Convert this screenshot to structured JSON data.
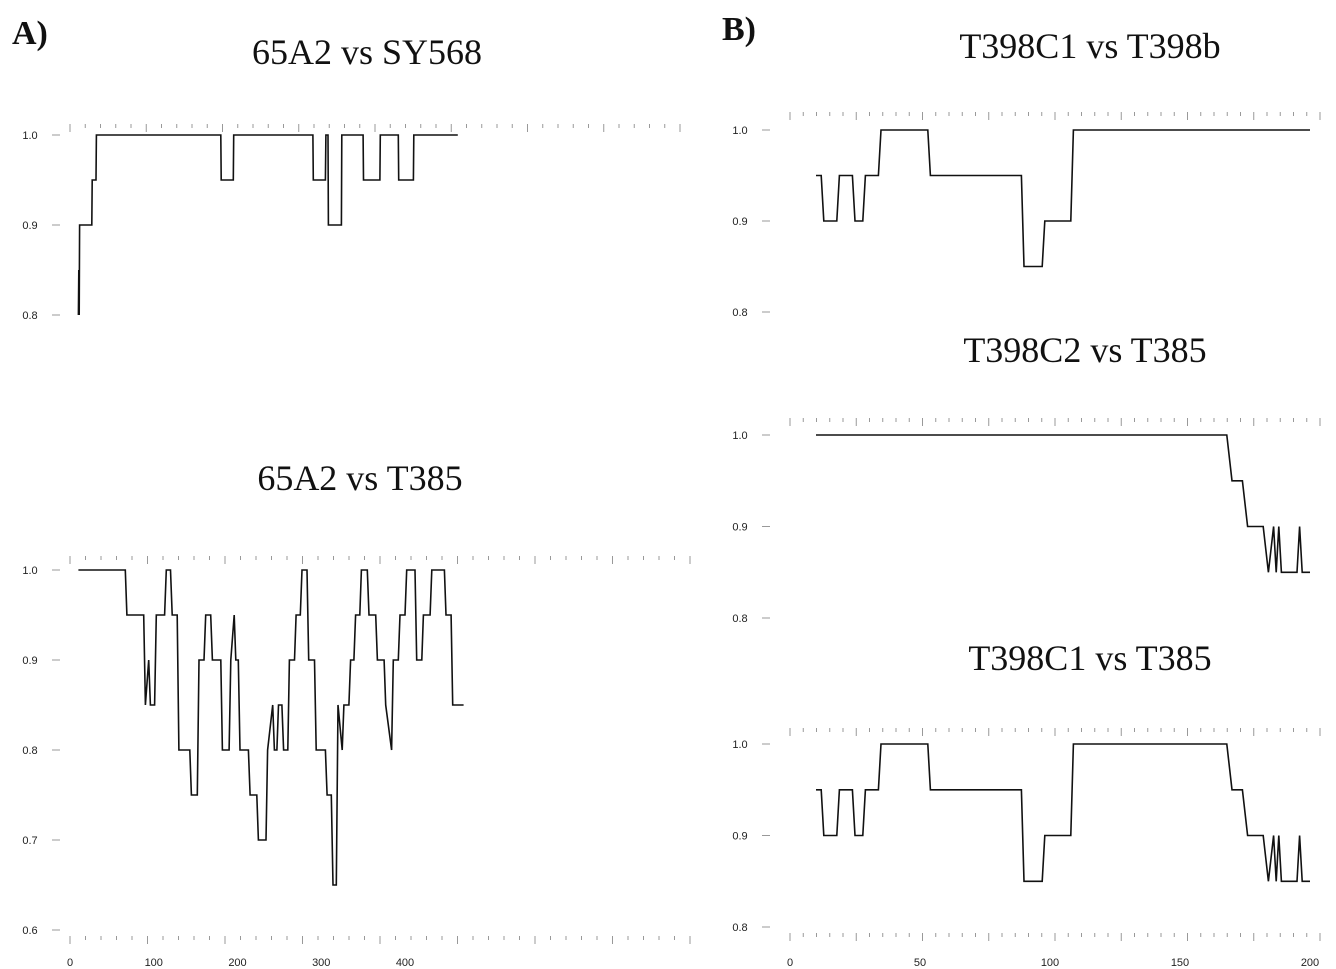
{
  "panels": [
    {
      "letter": "A)"
    },
    {
      "letter": "B)"
    }
  ],
  "chart_data": [
    {
      "type": "line",
      "title": "65A2 vs SY568",
      "ylim": [
        0.8,
        1.0
      ],
      "yticks": [
        "0.8",
        "0.9",
        "1.0"
      ],
      "xlim": [
        0,
        480
      ],
      "xticks": [],
      "x": [
        10,
        10.5,
        11,
        11.5,
        16,
        16.5,
        26,
        26.5,
        31,
        31.5,
        180,
        180.5,
        195,
        195.5,
        290,
        290.5,
        305,
        305.5,
        308,
        308.5,
        314,
        314.5,
        324,
        324.5,
        350,
        350.5,
        370,
        370.5,
        392,
        392.5,
        410,
        410.5,
        430,
        430.5,
        460,
        463
      ],
      "y": [
        0.8,
        0.85,
        0.8,
        0.9,
        0.9,
        0.9,
        0.9,
        0.95,
        0.95,
        1.0,
        1.0,
        0.95,
        0.95,
        1.0,
        1.0,
        0.95,
        0.95,
        1.0,
        1.0,
        0.9,
        0.9,
        0.9,
        0.9,
        1.0,
        1.0,
        0.95,
        0.95,
        1.0,
        1.0,
        0.95,
        0.95,
        1.0,
        1.0,
        1.0,
        1.0,
        1.0
      ]
    },
    {
      "type": "line",
      "title": "65A2 vs T385",
      "ylim": [
        0.6,
        1.0
      ],
      "yticks": [
        "0.6",
        "0.7",
        "0.8",
        "0.9",
        "1.0"
      ],
      "xlim": [
        0,
        480
      ],
      "xticks": [
        "0",
        "100",
        "200",
        "300",
        "400"
      ],
      "x": [
        10,
        66,
        68,
        88,
        90,
        94,
        96,
        101,
        103,
        113,
        115,
        120,
        122,
        128,
        130,
        143,
        145,
        152,
        154,
        160,
        162,
        168,
        170,
        180,
        182,
        190,
        192,
        196,
        198,
        201,
        203,
        213,
        215,
        223,
        225,
        234,
        236,
        242,
        244,
        247,
        249,
        253,
        255,
        260,
        262,
        268,
        270,
        275,
        277,
        283,
        285,
        292,
        294,
        305,
        307,
        312,
        314,
        318,
        320,
        325,
        327,
        333,
        335,
        339,
        341,
        346,
        348,
        355,
        357,
        365,
        367,
        375,
        377,
        384,
        386,
        392,
        394,
        400,
        402,
        412,
        414,
        420,
        422,
        430,
        432,
        447,
        449,
        455,
        457,
        470
      ],
      "y": [
        1.0,
        1.0,
        0.95,
        0.95,
        0.85,
        0.9,
        0.85,
        0.85,
        0.95,
        0.95,
        1.0,
        1.0,
        0.95,
        0.95,
        0.8,
        0.8,
        0.75,
        0.75,
        0.9,
        0.9,
        0.95,
        0.95,
        0.9,
        0.9,
        0.8,
        0.8,
        0.9,
        0.95,
        0.9,
        0.9,
        0.8,
        0.8,
        0.75,
        0.75,
        0.7,
        0.7,
        0.8,
        0.85,
        0.8,
        0.8,
        0.85,
        0.85,
        0.8,
        0.8,
        0.9,
        0.9,
        0.95,
        0.95,
        1.0,
        1.0,
        0.9,
        0.9,
        0.8,
        0.8,
        0.75,
        0.75,
        0.65,
        0.65,
        0.85,
        0.8,
        0.85,
        0.85,
        0.9,
        0.9,
        0.95,
        0.95,
        1.0,
        1.0,
        0.95,
        0.95,
        0.9,
        0.9,
        0.85,
        0.8,
        0.9,
        0.9,
        0.95,
        0.95,
        1.0,
        1.0,
        0.9,
        0.9,
        0.95,
        0.95,
        1.0,
        1.0,
        0.95,
        0.95,
        0.85,
        0.85
      ]
    },
    {
      "type": "line",
      "title": "T398C1 vs T398b",
      "ylim": [
        0.8,
        1.0
      ],
      "yticks": [
        "0.8",
        "0.9",
        "1.0"
      ],
      "xlim": [
        0,
        200
      ],
      "xticks": [],
      "x": [
        10,
        12,
        13,
        18,
        19,
        24,
        25,
        28,
        29,
        34,
        35,
        47,
        48,
        53,
        54,
        89,
        90,
        92,
        93,
        97,
        98,
        108,
        109,
        200
      ],
      "y": [
        0.95,
        0.95,
        0.9,
        0.9,
        0.95,
        0.95,
        0.9,
        0.9,
        0.95,
        0.95,
        1.0,
        1.0,
        1.0,
        1.0,
        0.95,
        0.95,
        0.85,
        0.85,
        0.85,
        0.85,
        0.9,
        0.9,
        1.0,
        1.0
      ]
    },
    {
      "type": "line",
      "title": "T398C2 vs T385",
      "ylim": [
        0.8,
        1.0
      ],
      "yticks": [
        "0.8",
        "0.9",
        "1.0"
      ],
      "xlim": [
        0,
        200
      ],
      "xticks": [],
      "x": [
        10,
        168,
        170,
        174,
        176,
        182,
        184,
        186,
        187,
        188,
        189,
        195,
        196,
        197,
        198,
        200
      ],
      "y": [
        1.0,
        1.0,
        0.95,
        0.95,
        0.9,
        0.9,
        0.85,
        0.9,
        0.85,
        0.9,
        0.85,
        0.85,
        0.9,
        0.85,
        0.85,
        0.85
      ]
    },
    {
      "type": "line",
      "title": "T398C1 vs T385",
      "ylim": [
        0.8,
        1.0
      ],
      "yticks": [
        "0.8",
        "0.9",
        "1.0"
      ],
      "xlim": [
        0,
        200
      ],
      "xticks": [
        "0",
        "50",
        "100",
        "150",
        "200"
      ],
      "x": [
        10,
        12,
        13,
        18,
        19,
        24,
        25,
        28,
        29,
        34,
        35,
        47,
        48,
        53,
        54,
        89,
        90,
        92,
        93,
        97,
        98,
        108,
        109,
        168,
        170,
        174,
        176,
        182,
        184,
        186,
        187,
        188,
        189,
        195,
        196,
        197,
        198,
        200
      ],
      "y": [
        0.95,
        0.95,
        0.9,
        0.9,
        0.95,
        0.95,
        0.9,
        0.9,
        0.95,
        0.95,
        1.0,
        1.0,
        1.0,
        1.0,
        0.95,
        0.95,
        0.85,
        0.85,
        0.85,
        0.85,
        0.9,
        0.9,
        1.0,
        1.0,
        0.95,
        0.95,
        0.9,
        0.9,
        0.85,
        0.9,
        0.85,
        0.9,
        0.85,
        0.85,
        0.9,
        0.85,
        0.85,
        0.85
      ]
    }
  ]
}
